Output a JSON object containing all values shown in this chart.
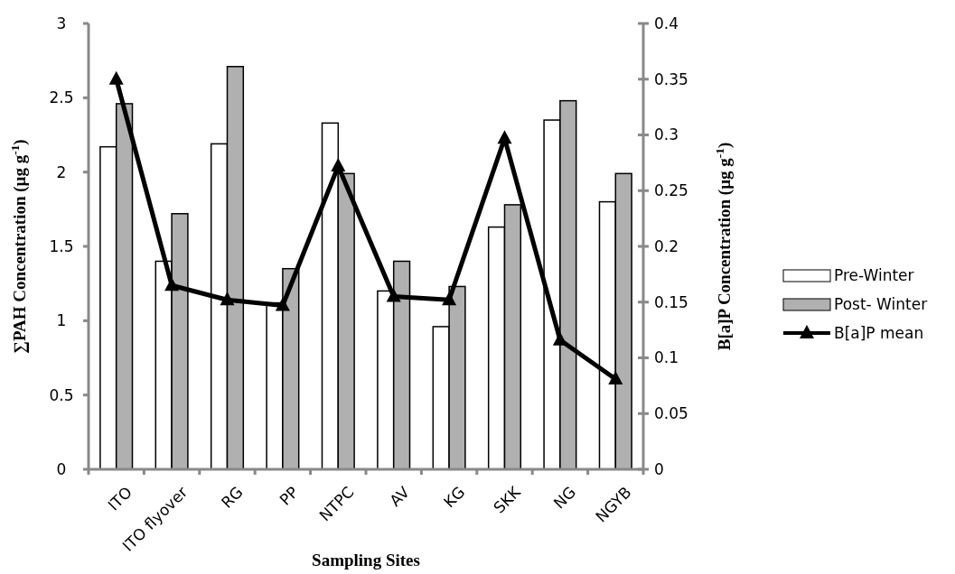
{
  "chart_data": {
    "type": "bar",
    "xlabel": "Sampling Sites",
    "ylabel": "∑PAH Concentration (µg g$^{-1}$)",
    "y2label": "B[a]P Concentration (µg g$^{-1}$)",
    "categories": [
      "ITO",
      "ITO flyover",
      "RG",
      "PP",
      "NTPC",
      "AV",
      "KG",
      "SKK",
      "NG",
      "NGYB"
    ],
    "series": [
      {
        "name": "Pre-Winter",
        "color": "#ffffff",
        "values": [
          2.17,
          1.4,
          2.19,
          1.12,
          2.33,
          1.2,
          0.96,
          1.63,
          2.35,
          1.8
        ]
      },
      {
        "name": "Post- Winter",
        "color": "#b0b0b0",
        "values": [
          2.46,
          1.72,
          2.71,
          1.35,
          1.99,
          1.4,
          1.23,
          1.78,
          2.48,
          1.99
        ]
      },
      {
        "name": "B[a]P mean",
        "type": "line",
        "axis": "y2",
        "color": "#000000",
        "marker": "triangle",
        "values": [
          0.35,
          0.165,
          0.152,
          0.147,
          0.272,
          0.155,
          0.152,
          0.297,
          0.116,
          0.081
        ]
      }
    ],
    "ylim": [
      0,
      3
    ],
    "yticks": [
      0,
      0.5,
      1,
      1.5,
      2,
      2.5,
      3
    ],
    "y2lim": [
      0,
      0.4
    ],
    "y2ticks": [
      0,
      0.05,
      0.1,
      0.15,
      0.2,
      0.25,
      0.3,
      0.35,
      0.4
    ],
    "grid": false,
    "legend": "right"
  }
}
